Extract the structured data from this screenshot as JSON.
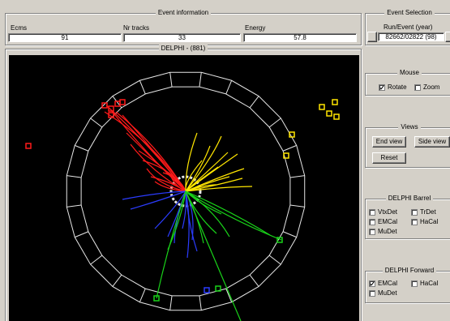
{
  "event_info": {
    "title": "Event information",
    "labels": {
      "ecms": "Ecms",
      "nr_tracks": "Nr tracks",
      "energy": "Energy"
    },
    "values": {
      "ecms": "91",
      "nr_tracks": "33",
      "energy": "57.8"
    }
  },
  "event_selection": {
    "title": "Event Selection",
    "run_event_label": "Run/Event  (year)",
    "run_event_value": "82662/02822  (98)"
  },
  "display": {
    "title": "DELPHI - (881)"
  },
  "mouse": {
    "title": "Mouse",
    "rotate_label": "Rotate",
    "rotate_checked": true,
    "zoom_label": "Zoom",
    "zoom_checked": false
  },
  "views": {
    "title": "Views",
    "end_view_label": "End view",
    "side_view_label": "Side view",
    "reset_label": "Reset"
  },
  "barrel": {
    "title": "DELPHI Barrel",
    "items": [
      {
        "label": "VtxDet",
        "checked": false
      },
      {
        "label": "TrDet",
        "checked": false
      },
      {
        "label": "EMCal",
        "checked": false
      },
      {
        "label": "HaCal",
        "checked": false
      },
      {
        "label": "MuDet",
        "checked": false
      }
    ]
  },
  "forward": {
    "title": "DELPHI Forward",
    "items": [
      {
        "label": "EMCal",
        "checked": true
      },
      {
        "label": "HaCal",
        "checked": false
      },
      {
        "label": "MuDet",
        "checked": false
      }
    ]
  },
  "colors": {
    "jet_red": "#ff1a1a",
    "jet_yellow": "#ffe600",
    "jet_blue": "#2b3cff",
    "jet_green": "#19d219",
    "detector": "#e6e6e6"
  }
}
